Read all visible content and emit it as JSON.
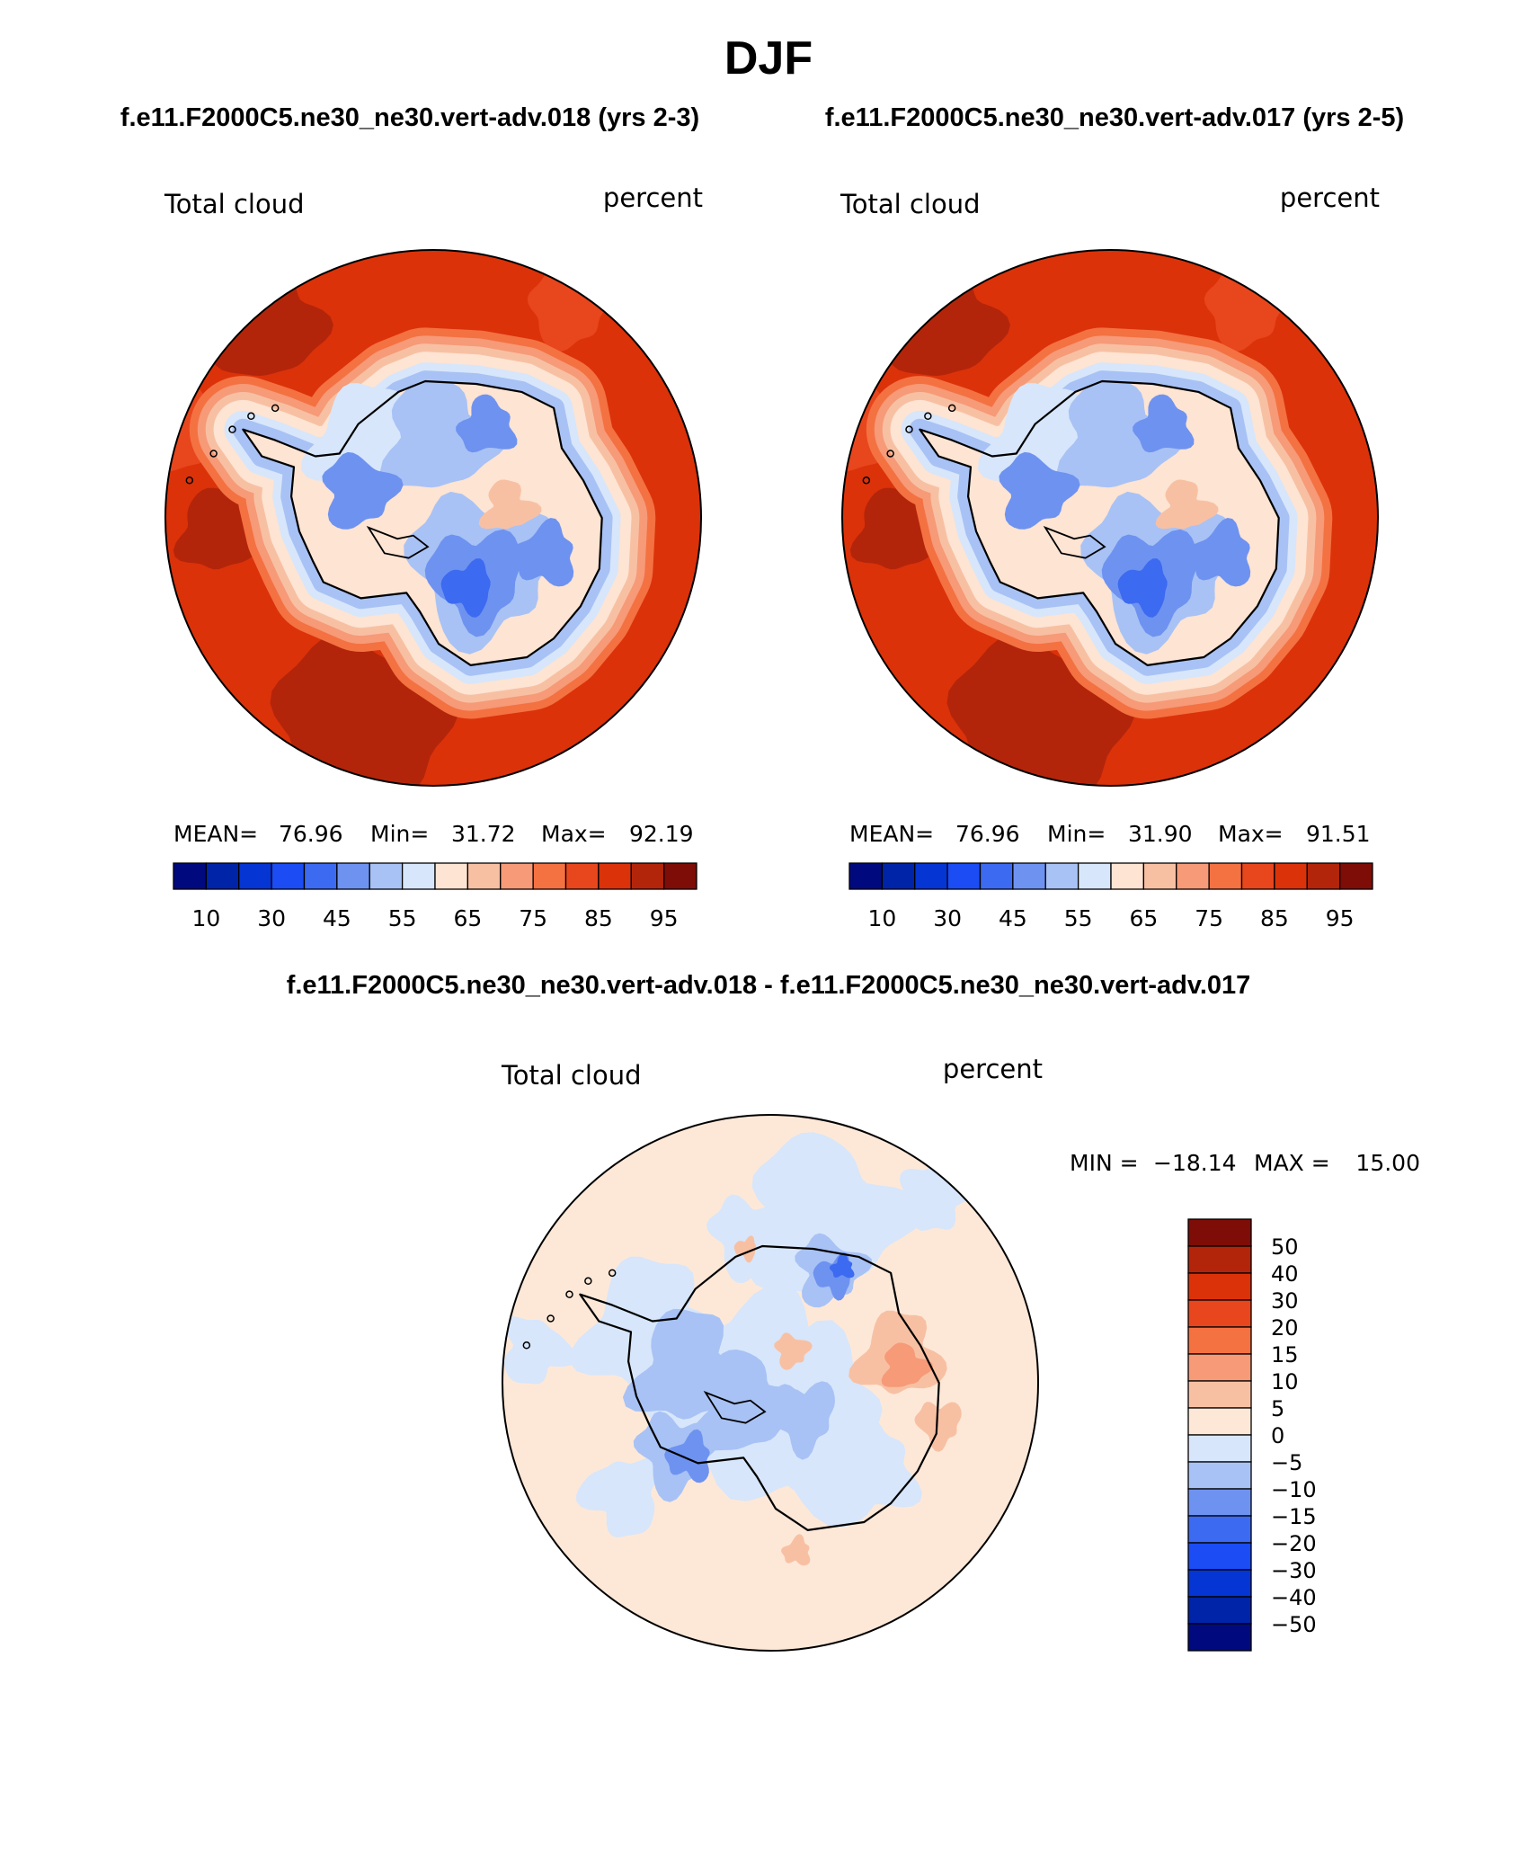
{
  "title": "DJF",
  "panel_titles": {
    "left": "f.e11.F2000C5.ne30_ne30.vert-adv.018 (yrs 2-3)",
    "right": "f.e11.F2000C5.ne30_ne30.vert-adv.017 (yrs 2-5)",
    "diff": "f.e11.F2000C5.ne30_ne30.vert-adv.018 - f.e11.F2000C5.ne30_ne30.vert-adv.017"
  },
  "colors": {
    "absolute": [
      "#000a7e",
      "#0024a8",
      "#0535d2",
      "#1b4cf4",
      "#3c6af0",
      "#6e92f0",
      "#a8c2f5",
      "#d7e6fa",
      "#fde4d3",
      "#f8c0a3",
      "#f69a78",
      "#f47142",
      "#e8461d",
      "#db320a",
      "#b3250a",
      "#7d0d06"
    ],
    "difference": [
      "#000a7e",
      "#0024a8",
      "#0535d2",
      "#1b4cf4",
      "#3c6af0",
      "#6e92f0",
      "#a8c2f5",
      "#d7e6fa",
      "#fde8d8",
      "#f8c0a3",
      "#f69a78",
      "#f47142",
      "#e8461d",
      "#db320a",
      "#b3250a",
      "#7d0d06"
    ]
  },
  "chart_data": [
    {
      "type": "polar-contour-map",
      "variable": "Total cloud",
      "units": "percent",
      "projection": "south polar stereographic",
      "stats": {
        "mean_label": "MEAN=",
        "mean": "76.96",
        "min_label": "Min=",
        "min": "31.72",
        "max_label": "Max=",
        "max": "92.19"
      },
      "levels": [
        5,
        10,
        20,
        30,
        40,
        45,
        50,
        55,
        60,
        65,
        70,
        75,
        80,
        85,
        90,
        95
      ],
      "colorbar_labels": [
        "10",
        "30",
        "45",
        "55",
        "65",
        "75",
        "85",
        "95"
      ],
      "ocean_value_range": [
        80,
        92
      ],
      "continent_value_range": [
        32,
        65
      ]
    },
    {
      "type": "polar-contour-map",
      "variable": "Total cloud",
      "units": "percent",
      "projection": "south polar stereographic",
      "stats": {
        "mean_label": "MEAN=",
        "mean": "76.96",
        "min_label": "Min=",
        "min": "31.90",
        "max_label": "Max=",
        "max": "91.51"
      },
      "levels": [
        5,
        10,
        20,
        30,
        40,
        45,
        50,
        55,
        60,
        65,
        70,
        75,
        80,
        85,
        90,
        95
      ],
      "colorbar_labels": [
        "10",
        "30",
        "45",
        "55",
        "65",
        "75",
        "85",
        "95"
      ],
      "ocean_value_range": [
        80,
        92
      ],
      "continent_value_range": [
        32,
        65
      ]
    },
    {
      "type": "polar-contour-map",
      "variable": "Total cloud",
      "units": "percent",
      "projection": "south polar stereographic",
      "stats": {
        "min_label": "MIN =",
        "min": "−18.14",
        "max_label": "MAX =",
        "max": "15.00"
      },
      "levels": [
        -50,
        -40,
        -30,
        -20,
        -15,
        -10,
        -5,
        0,
        5,
        10,
        15,
        20,
        30,
        40,
        50
      ],
      "colorbar_labels": [
        "50",
        "40",
        "30",
        "20",
        "15",
        "10",
        "5",
        "0",
        "−5",
        "−10",
        "−15",
        "−20",
        "−30",
        "−40",
        "−50"
      ]
    }
  ]
}
